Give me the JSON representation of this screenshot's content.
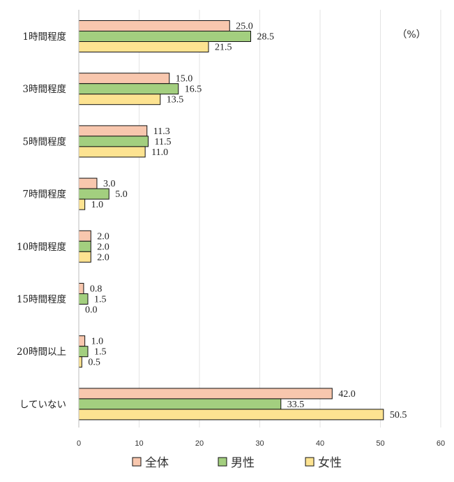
{
  "chart_data": {
    "type": "bar",
    "orientation": "horizontal",
    "unit": "（%）",
    "categories": [
      "1時間程度",
      "3時間程度",
      "5時間程度",
      "7時間程度",
      "10時間程度",
      "15時間程度",
      "20時間以上",
      "していない"
    ],
    "series": [
      {
        "name": "全体",
        "color": "#f8c7ae",
        "values": [
          25.0,
          15.0,
          11.3,
          3.0,
          2.0,
          0.8,
          1.0,
          42.0
        ]
      },
      {
        "name": "男性",
        "color": "#a3cf7f",
        "values": [
          28.5,
          16.5,
          11.5,
          5.0,
          2.0,
          1.5,
          1.5,
          33.5
        ]
      },
      {
        "name": "女性",
        "color": "#fde391",
        "values": [
          21.5,
          13.5,
          11.0,
          1.0,
          2.0,
          0.0,
          0.5,
          50.5
        ]
      }
    ],
    "xlim": [
      0,
      60
    ],
    "xticks": [
      0,
      10,
      20,
      30,
      40,
      50,
      60
    ],
    "grid": true,
    "legend_position": "bottom"
  }
}
